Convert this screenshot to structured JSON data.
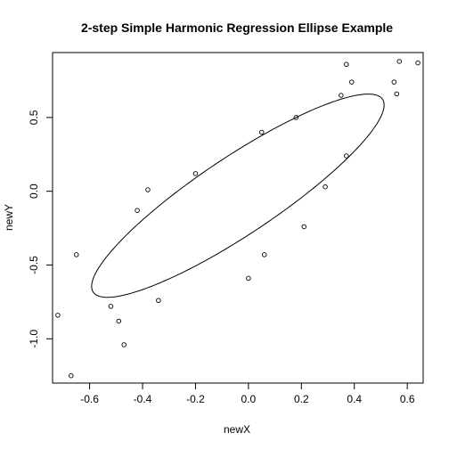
{
  "chart_data": {
    "type": "scatter",
    "title": "2-step Simple Harmonic Regression Ellipse Example",
    "xlabel": "newX",
    "ylabel": "newY",
    "xlim": [
      -0.74,
      0.66
    ],
    "ylim": [
      -1.3,
      0.94
    ],
    "x_ticks": [
      -0.6,
      -0.4,
      -0.2,
      0.0,
      0.2,
      0.4,
      0.6
    ],
    "x_tick_labels": [
      "-0.6",
      "-0.4",
      "-0.2",
      "0.0",
      "0.2",
      "0.4",
      "0.6"
    ],
    "y_ticks": [
      -1.0,
      -0.5,
      0.0,
      0.5
    ],
    "y_tick_labels": [
      "-1.0",
      "-0.5",
      "0.0",
      "0.5"
    ],
    "grid": false,
    "legend": "none",
    "series": [
      {
        "points": [
          {
            "x": -0.72,
            "y": -0.84
          },
          {
            "x": -0.67,
            "y": -1.25
          },
          {
            "x": -0.65,
            "y": -0.43
          },
          {
            "x": -0.52,
            "y": -0.78
          },
          {
            "x": -0.49,
            "y": -0.88
          },
          {
            "x": -0.47,
            "y": -1.04
          },
          {
            "x": -0.42,
            "y": -0.13
          },
          {
            "x": -0.38,
            "y": 0.01
          },
          {
            "x": -0.34,
            "y": -0.74
          },
          {
            "x": -0.2,
            "y": 0.12
          },
          {
            "x": 0.0,
            "y": -0.59
          },
          {
            "x": 0.05,
            "y": 0.4
          },
          {
            "x": 0.06,
            "y": -0.43
          },
          {
            "x": 0.18,
            "y": 0.5
          },
          {
            "x": 0.21,
            "y": -0.24
          },
          {
            "x": 0.29,
            "y": 0.03
          },
          {
            "x": 0.35,
            "y": 0.65
          },
          {
            "x": 0.37,
            "y": 0.24
          },
          {
            "x": 0.37,
            "y": 0.86
          },
          {
            "x": 0.39,
            "y": 0.74
          },
          {
            "x": 0.55,
            "y": 0.74
          },
          {
            "x": 0.56,
            "y": 0.66
          },
          {
            "x": 0.57,
            "y": 0.88
          },
          {
            "x": 0.64,
            "y": 0.87
          }
        ]
      }
    ],
    "ellipse": {
      "center": {
        "x": -0.04,
        "y": -0.03
      },
      "semi_major": 0.86,
      "semi_minor": 0.2,
      "angle_deg": 52
    }
  }
}
